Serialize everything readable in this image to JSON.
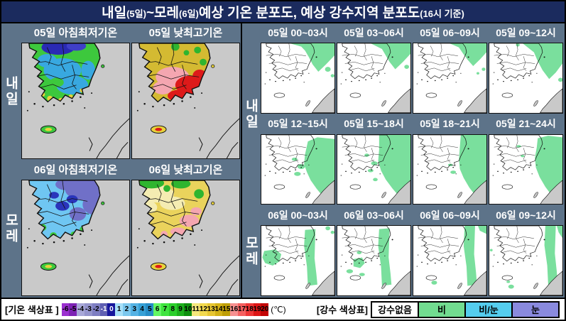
{
  "title": {
    "p1": "내일",
    "p2": "(5일)",
    "p3": "~모레",
    "p4": "(6일)",
    "p5": " 예상 기온 분포도, 예상 강수지역 분포도",
    "p6": "(16시 기준)"
  },
  "temp_section": {
    "row_labels": [
      "내일",
      "모레"
    ],
    "labels": [
      "05일 아침최저기온",
      "05일 낮최고기온",
      "06일 아침최저기온",
      "06일 낮최고기온"
    ]
  },
  "precip_section": {
    "row_labels": [
      "내일",
      "모레"
    ],
    "rows": [
      [
        "05일 00~03시",
        "05일 03~06시",
        "05일 06~09시",
        "05일 09~12시"
      ],
      [
        "05일 12~15시",
        "05일 15~18시",
        "05일 18~21시",
        "05일 21~24시"
      ],
      [
        "06일 00~03시",
        "06일 03~06시",
        "06일 06~09시",
        "06일 09~12시"
      ]
    ]
  },
  "legend_temp": {
    "label": "[기온 색상표 ]",
    "unit": "(℃)",
    "values": [
      "-6",
      "-5",
      "-4",
      "-3",
      "-2",
      "-1",
      "0",
      "1",
      "2",
      "3",
      "4",
      "5",
      "6",
      "7",
      "8",
      "9",
      "10",
      "11",
      "12",
      "13",
      "14",
      "15",
      "16",
      "17",
      "18",
      "19",
      "20"
    ],
    "colors": [
      "#9b30d0",
      "#7d22b4",
      "#a8a8d8",
      "#9494cc",
      "#7e7ec2",
      "#5f5fb2",
      "#16169c",
      "#a8e0f8",
      "#7cc8ee",
      "#54b2e4",
      "#36a0d6",
      "#268cc6",
      "#63f763",
      "#3fe43f",
      "#2bcf2b",
      "#1cb01c",
      "#0e8f0e",
      "#f5e87d",
      "#f2d94e",
      "#e7c631",
      "#d4b216",
      "#bf9f05",
      "#f79090",
      "#f56060",
      "#ee3636",
      "#dd1515",
      "#c40303"
    ]
  },
  "legend_precip": {
    "label": "[강수 색상표]",
    "items": [
      {
        "label": "강수없음",
        "color": "#ffffff"
      },
      {
        "label": "비",
        "color": "#72dc90"
      },
      {
        "label": "비/눈",
        "color": "#55cdee"
      },
      {
        "label": "눈",
        "color": "#8a8ade"
      }
    ]
  },
  "colors": {
    "title_bg": "#1b2b5e",
    "panel_bg": "#5d7389",
    "temp_map_sea": "#c9c9c9",
    "precip_map_bg": "#ffffff",
    "precip_green": "#7adf9d",
    "outline": "#111111"
  }
}
